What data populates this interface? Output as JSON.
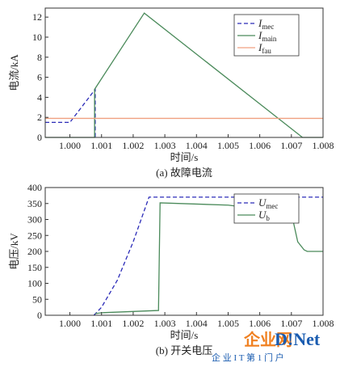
{
  "charts": [
    {
      "chart_data": {
        "type": "line",
        "ylabel": "电流/kA",
        "xlabel": "时间/s",
        "caption": "(a) 故障电流",
        "xlim": [
          0.99922,
          1.008
        ],
        "ylim": [
          0,
          12.9
        ],
        "xticks": [
          {
            "value": 1.0,
            "label": "1.000"
          },
          {
            "value": 1.001,
            "label": "1.001"
          },
          {
            "value": 1.002,
            "label": "1.002"
          },
          {
            "value": 1.003,
            "label": "1.003"
          },
          {
            "value": 1.004,
            "label": "1.004"
          },
          {
            "value": 1.005,
            "label": "1.005"
          },
          {
            "value": 1.006,
            "label": "1.006"
          },
          {
            "value": 1.007,
            "label": "1.007"
          },
          {
            "value": 1.008,
            "label": "1.008"
          }
        ],
        "yticks": [
          0,
          2,
          4,
          6,
          8,
          10,
          12
        ],
        "legend": "upper right",
        "series": [
          {
            "name": "I",
            "name_subscript": "mec",
            "color": "#2b2bb8",
            "dashed": true,
            "x": [
              0.99922,
              1.0,
              1.0008,
              1.0008
            ],
            "values": [
              1.5,
              1.5,
              4.8,
              0
            ]
          },
          {
            "name": "I",
            "name_subscript": "main",
            "color": "#4a8a5a",
            "dashed": false,
            "x": [
              0.99922,
              1.00078,
              1.00078,
              1.00235,
              1.00735,
              1.008
            ],
            "values": [
              0,
              0,
              4.8,
              12.4,
              0,
              0
            ]
          },
          {
            "name": "I",
            "name_subscript": "fau",
            "color": "#f0a080",
            "dashed": false,
            "x": [
              0.99922,
              1.008
            ],
            "values": [
              1.9,
              1.9
            ]
          }
        ]
      }
    },
    {
      "chart_data": {
        "type": "line",
        "ylabel": "电压/kV",
        "xlabel": "时间/s",
        "caption": "(b) 开关电压",
        "xlim": [
          0.99922,
          1.008
        ],
        "ylim": [
          0,
          400
        ],
        "xticks": [
          {
            "value": 1.0,
            "label": "1.000"
          },
          {
            "value": 1.001,
            "label": "1.001"
          },
          {
            "value": 1.002,
            "label": "1.002"
          },
          {
            "value": 1.003,
            "label": "1.003"
          },
          {
            "value": 1.004,
            "label": "1.004"
          },
          {
            "value": 1.005,
            "label": "1.005"
          },
          {
            "value": 1.006,
            "label": "1.006"
          },
          {
            "value": 1.007,
            "label": "1.007"
          },
          {
            "value": 1.008,
            "label": "1.008"
          }
        ],
        "yticks": [
          0,
          50,
          100,
          150,
          200,
          250,
          300,
          350,
          400
        ],
        "legend": "upper right",
        "series": [
          {
            "name": "U",
            "name_subscript": "mec",
            "color": "#2b2bb8",
            "dashed": true,
            "x": [
              1.00076,
              1.001,
              1.0015,
              1.002,
              1.0025,
              1.008
            ],
            "values": [
              0,
              25,
              110,
              230,
              370,
              370
            ]
          },
          {
            "name": "U",
            "name_subscript": "b",
            "color": "#4a8a5a",
            "dashed": false,
            "x": [
              1.0008,
              1.001,
              1.0028,
              1.00285,
              1.005,
              1.007,
              1.0072,
              1.0074,
              1.0075,
              1.008
            ],
            "values": [
              5,
              8,
              15,
              352,
              345,
              320,
              230,
              205,
              200,
              200
            ]
          }
        ]
      }
    }
  ],
  "watermark": {
    "logo": "企业网",
    "brand": "D!Net",
    "slogan": "企 业 I T 第 1 门 户"
  }
}
